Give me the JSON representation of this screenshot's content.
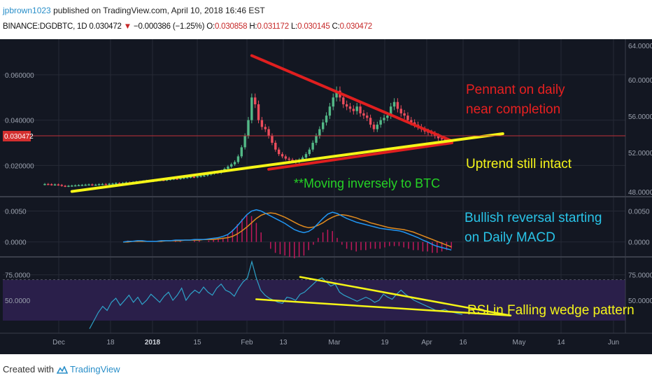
{
  "header": {
    "author": "jpbrown1023",
    "published_text": "published on TradingView.com, April 10, 2018 16:46 EST",
    "symbol": "BINANCE:DGDBTC, 1D",
    "last": "0.030472",
    "change_arrow": "▼",
    "change": "−0.000386 (−1.25%)",
    "o_label": "O:",
    "o_value": "0.030858",
    "h_label": "H:",
    "h_value": "0.031172",
    "l_label": "L:",
    "l_value": "0.030145",
    "c_label": "C:",
    "c_value": "0.030472"
  },
  "footer": {
    "created_with": "Created with",
    "brand": "TradingView",
    "logo_icon": "tradingview-logo-icon"
  },
  "colors": {
    "background": "#131722",
    "up_candle": "#53b987",
    "down_candle": "#eb4d5c",
    "trend_red": "#e01f1f",
    "trend_yellow": "#f5f517",
    "macd_line": "#2196f3",
    "signal_line": "#e08a1e",
    "histogram": "#c2185b",
    "rsi_line": "#2ea3c9",
    "rsi_band": "#2a1f4a",
    "ann_red": "#e82020",
    "ann_yellow": "#f5f51a",
    "ann_green": "#25d225",
    "ann_cyan": "#29c4e8"
  },
  "annotations": {
    "pennant": [
      "Pennant on daily",
      "near completion"
    ],
    "uptrend": "Uptrend still intact",
    "inverse": "**Moving inversely to BTC",
    "macd": [
      "Bullish reversal starting",
      "on Daily MACD"
    ],
    "rsi": "RSI in Falling wedge pattern"
  },
  "chart_data": [
    {
      "type": "candlestick",
      "pane": "price",
      "x_tick_labels": [
        "Dec",
        "18",
        "2018",
        "15",
        "Feb",
        "13",
        "Mar",
        "19",
        "Apr",
        "16",
        "May",
        "14",
        "Jun"
      ],
      "left_axis": {
        "ticks": [
          "0.020000",
          "0.040000",
          "0.060000"
        ],
        "ylim": [
          0.0065,
          0.0745
        ]
      },
      "right_axis": {
        "ticks": [
          "48.0000",
          "52.0000",
          "56.0000",
          "60.0000",
          "64.0000"
        ]
      },
      "price_label": "0.030472",
      "close_series": [
        0.0118,
        0.0117,
        0.0115,
        0.0116,
        0.0114,
        0.011,
        0.0108,
        0.011,
        0.0111,
        0.0112,
        0.0113,
        0.0114,
        0.0115,
        0.0116,
        0.0114,
        0.0115,
        0.0117,
        0.0118,
        0.0117,
        0.0119,
        0.012,
        0.0122,
        0.0121,
        0.0123,
        0.0125,
        0.0124,
        0.0126,
        0.0128,
        0.0127,
        0.013,
        0.0132,
        0.0131,
        0.0133,
        0.0135,
        0.0136,
        0.0135,
        0.0138,
        0.014,
        0.0142,
        0.0141,
        0.0144,
        0.0146,
        0.0148,
        0.015,
        0.0149,
        0.0152,
        0.0154,
        0.0156,
        0.016,
        0.0165,
        0.017,
        0.0168,
        0.0175,
        0.0185,
        0.0195,
        0.0205,
        0.0215,
        0.024,
        0.028,
        0.033,
        0.04,
        0.05,
        0.047,
        0.04,
        0.037,
        0.036,
        0.033,
        0.03,
        0.027,
        0.025,
        0.024,
        0.023,
        0.0225,
        0.022,
        0.0215,
        0.0225,
        0.0235,
        0.025,
        0.027,
        0.03,
        0.033,
        0.036,
        0.039,
        0.042,
        0.046,
        0.05,
        0.053,
        0.05,
        0.047,
        0.046,
        0.045,
        0.044,
        0.046,
        0.043,
        0.042,
        0.041,
        0.038,
        0.036,
        0.038,
        0.04,
        0.041,
        0.042,
        0.046,
        0.048,
        0.045,
        0.043,
        0.042,
        0.04,
        0.039,
        0.038,
        0.037,
        0.036,
        0.035,
        0.0345,
        0.034,
        0.033,
        0.032,
        0.0315,
        0.031,
        0.0305
      ],
      "trendlines": [
        {
          "color": "trend_red",
          "from_bar": 61,
          "from_value": 0.0685,
          "to_bar": 120,
          "to_value": 0.0308
        },
        {
          "color": "trend_red",
          "from_bar": 66,
          "from_value": 0.0183,
          "to_bar": 120,
          "to_value": 0.03
        },
        {
          "color": "trend_yellow",
          "from_bar": 8,
          "from_value": 0.0085,
          "to_bar": 135,
          "to_value": 0.034
        }
      ]
    },
    {
      "type": "line",
      "pane": "macd",
      "ticks": [
        "0.0000",
        "0.0050"
      ],
      "ylim": [
        -0.0023,
        0.0072
      ],
      "series": [
        {
          "values": [
            0.0,
            0.0001,
            0.0001,
            0.0002,
            0.0002,
            0.0001,
            0.0001,
            0.0001,
            0.0002,
            0.0002,
            0.0002,
            0.0003,
            0.0003,
            0.0003,
            0.0003,
            0.0004,
            0.0004,
            0.0004,
            0.0005,
            0.0006,
            0.0007,
            0.0009,
            0.0012,
            0.0018,
            0.0026,
            0.0035,
            0.0044,
            0.005,
            0.0052,
            0.005,
            0.0046,
            0.0042,
            0.0038,
            0.0034,
            0.003,
            0.0025,
            0.002,
            0.0017,
            0.0015,
            0.0017,
            0.0022,
            0.003,
            0.0038,
            0.0045,
            0.0048,
            0.0046,
            0.0042,
            0.0038,
            0.0035,
            0.0032,
            0.003,
            0.0028,
            0.0026,
            0.0024,
            0.0022,
            0.0021,
            0.002,
            0.0019,
            0.0018,
            0.0016,
            0.0013,
            0.001,
            0.0007,
            0.0003,
            0.0,
            -0.0004,
            -0.0007,
            -0.0009,
            -0.0011,
            -0.0013
          ]
        },
        {
          "values": [
            0.0,
            0.0,
            0.0001,
            0.0001,
            0.0001,
            0.0001,
            0.0001,
            0.0001,
            0.0001,
            0.0002,
            0.0002,
            0.0002,
            0.0002,
            0.0003,
            0.0003,
            0.0003,
            0.0003,
            0.0004,
            0.0004,
            0.0004,
            0.0005,
            0.0006,
            0.0007,
            0.0009,
            0.0013,
            0.0018,
            0.0024,
            0.0031,
            0.0038,
            0.0043,
            0.0046,
            0.0047,
            0.0046,
            0.0043,
            0.004,
            0.0036,
            0.0032,
            0.0028,
            0.0025,
            0.0023,
            0.0024,
            0.0027,
            0.0031,
            0.0036,
            0.004,
            0.0043,
            0.0044,
            0.0043,
            0.0041,
            0.0039,
            0.0036,
            0.0034,
            0.0031,
            0.0029,
            0.0027,
            0.0025,
            0.0023,
            0.0022,
            0.0021,
            0.002,
            0.0018,
            0.0016,
            0.0013,
            0.001,
            0.0007,
            0.0004,
            0.0001,
            -0.0002,
            -0.0005,
            -0.0008
          ]
        }
      ]
    },
    {
      "type": "line",
      "pane": "rsi",
      "ticks": [
        "50.0000",
        "75.0000"
      ],
      "ylim": [
        19,
        92
      ],
      "bands": [
        30,
        70
      ],
      "series": [
        {
          "values": [
            22,
            30,
            38,
            44,
            40,
            48,
            52,
            45,
            50,
            55,
            48,
            53,
            46,
            50,
            56,
            52,
            48,
            54,
            58,
            50,
            55,
            62,
            50,
            56,
            60,
            57,
            63,
            58,
            55,
            62,
            66,
            60,
            58,
            54,
            62,
            68,
            72,
            88,
            72,
            60,
            55,
            52,
            50,
            48,
            47,
            53,
            52,
            50,
            56,
            58,
            62,
            66,
            70,
            72,
            68,
            64,
            66,
            58,
            55,
            53,
            51,
            49,
            51,
            53,
            51,
            48,
            50,
            56,
            53,
            51,
            56,
            60,
            56,
            53,
            50,
            48,
            46,
            44,
            42,
            40,
            40,
            41,
            39,
            38,
            37,
            36
          ]
        }
      ],
      "trendlines": [
        {
          "color": "trend_yellow",
          "from_bar": 48,
          "from_value": 73,
          "to_bar": 96,
          "to_value": 35
        },
        {
          "color": "trend_yellow",
          "from_bar": 38,
          "from_value": 51,
          "to_bar": 96,
          "to_value": 35
        }
      ]
    }
  ]
}
